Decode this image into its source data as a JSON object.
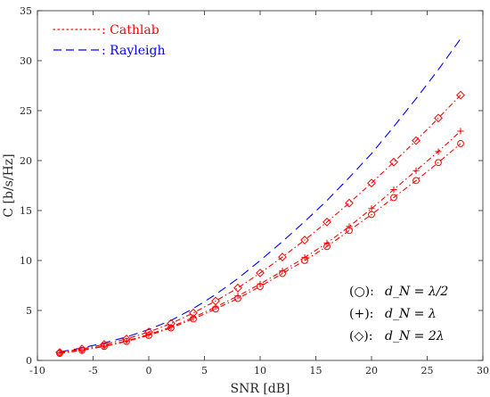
{
  "chart_data": {
    "type": "line",
    "xlabel": "SNR [dB]",
    "ylabel": "C [b/s/Hz]",
    "xlim": [
      -10,
      30
    ],
    "ylim": [
      0,
      35
    ],
    "xticks": [
      -10,
      -5,
      0,
      5,
      10,
      15,
      20,
      25,
      30
    ],
    "yticks": [
      0,
      5,
      10,
      15,
      20,
      25,
      30,
      35
    ],
    "grid": false,
    "legend": {
      "placement": "top-left",
      "entries": [
        {
          "label": ": Cathlab",
          "color": "#ff0000",
          "style": "dotted"
        },
        {
          "label": ": Rayleigh",
          "color": "#0000ff",
          "style": "dashed"
        }
      ]
    },
    "annotations": [
      {
        "marker": "(○):",
        "text": "d_N = λ/2"
      },
      {
        "marker": "(+):",
        "text": "d_N = λ"
      },
      {
        "marker": "(◇):",
        "text": "d_N = 2λ"
      }
    ],
    "series": [
      {
        "name": "Rayleigh",
        "color": "#0000ff",
        "style": "dashed",
        "marker": "none",
        "x": [
          -8,
          -6,
          -4,
          -2,
          0,
          2,
          4,
          6,
          8,
          10,
          12,
          14,
          16,
          18,
          20,
          22,
          24,
          26,
          28
        ],
        "values": [
          0.85,
          1.25,
          1.75,
          2.35,
          3.1,
          4.0,
          5.2,
          6.6,
          8.2,
          10.0,
          11.9,
          13.9,
          16.0,
          18.3,
          20.7,
          23.4,
          26.2,
          29.1,
          32.2
        ]
      },
      {
        "name": "d_N = 2λ",
        "color": "#ff0000",
        "style": "dashdot",
        "marker": "diamond",
        "x": [
          -8,
          -6,
          -4,
          -2,
          0,
          2,
          4,
          6,
          8,
          10,
          12,
          14,
          16,
          18,
          20,
          22,
          24,
          26,
          28
        ],
        "values": [
          0.8,
          1.15,
          1.6,
          2.15,
          2.85,
          3.7,
          4.75,
          5.95,
          7.25,
          8.75,
          10.35,
          12.05,
          13.85,
          15.75,
          17.75,
          19.85,
          22.0,
          24.25,
          26.55
        ]
      },
      {
        "name": "d_N = λ",
        "color": "#ff0000",
        "style": "dashdot",
        "marker": "plus",
        "x": [
          -8,
          -6,
          -4,
          -2,
          0,
          2,
          4,
          6,
          8,
          10,
          12,
          14,
          16,
          18,
          20,
          22,
          24,
          26,
          28
        ],
        "values": [
          0.75,
          1.05,
          1.45,
          1.95,
          2.6,
          3.35,
          4.3,
          5.35,
          6.45,
          7.65,
          8.95,
          10.3,
          11.75,
          13.4,
          15.2,
          17.1,
          19.0,
          20.9,
          22.95
        ]
      },
      {
        "name": "d_N = λ/2",
        "color": "#ff0000",
        "style": "dashdot",
        "marker": "circle",
        "x": [
          -8,
          -6,
          -4,
          -2,
          0,
          2,
          4,
          6,
          8,
          10,
          12,
          14,
          16,
          18,
          20,
          22,
          24,
          26,
          28
        ],
        "values": [
          0.7,
          1.0,
          1.4,
          1.9,
          2.5,
          3.25,
          4.15,
          5.15,
          6.2,
          7.4,
          8.7,
          10.0,
          11.4,
          13.0,
          14.6,
          16.3,
          18.0,
          19.8,
          21.7
        ]
      }
    ]
  }
}
